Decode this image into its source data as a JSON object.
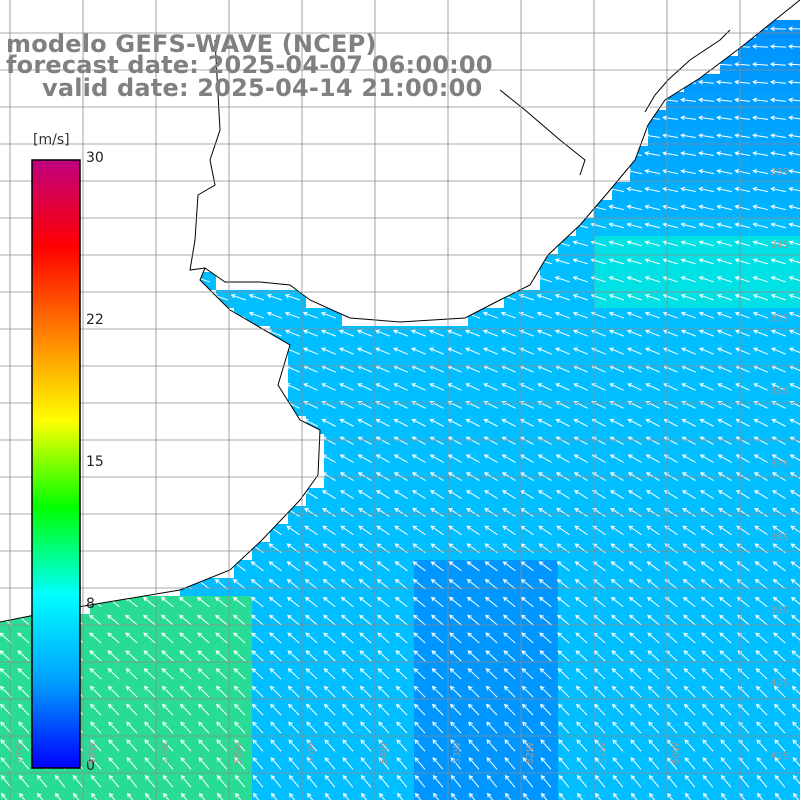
{
  "title": {
    "line1": "modelo GEFS-WAVE (NCEP)",
    "line2": "forecast date: 2025-04-07 06:00:00",
    "line3": "valid date: 2025-04-14 21:00:00"
  },
  "colorbar": {
    "unit": "[m/s]",
    "ticks": [
      {
        "label": "30",
        "value": 30
      },
      {
        "label": "22",
        "value": 22
      },
      {
        "label": "15",
        "value": 15
      },
      {
        "label": "8",
        "value": 8
      },
      {
        "label": "0",
        "value": 0
      }
    ],
    "min": 0,
    "max": 30,
    "stops": [
      "#0000ff",
      "#00a0ff",
      "#00ffff",
      "#00ff00",
      "#ffff00",
      "#ff8000",
      "#ff0000",
      "#c00080"
    ]
  },
  "lat_labels": [
    "33S",
    "34S",
    "35S",
    "36S",
    "37S",
    "38S",
    "39S",
    "40S",
    "41S"
  ],
  "lon_labels": [
    "59W",
    "58W",
    "57W",
    "56W",
    "55W",
    "54W",
    "53W",
    "52W",
    "51W",
    "50W"
  ],
  "colors": {
    "land": "#ffffff",
    "coast": "#000000",
    "grid": "#8c8c8c",
    "arrow": "#ffffff"
  }
}
